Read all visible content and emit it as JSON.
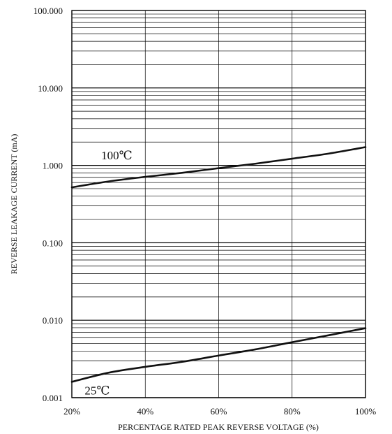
{
  "chart_data": {
    "type": "line",
    "xlabel": "PERCENTAGE RATED PEAK REVERSE VOLTAGE (%)",
    "ylabel": "REVERSE LEAKAGE CURRENT (mA)",
    "y_scale": "log",
    "xlim": [
      20,
      100
    ],
    "ylim": [
      0.001,
      100
    ],
    "grid": true,
    "x_ticks": [
      {
        "value": 20,
        "label": "20%"
      },
      {
        "value": 40,
        "label": "40%"
      },
      {
        "value": 60,
        "label": "60%"
      },
      {
        "value": 80,
        "label": "80%"
      },
      {
        "value": 100,
        "label": "100%"
      }
    ],
    "y_ticks": [
      {
        "value": 0.001,
        "label": "0.001"
      },
      {
        "value": 0.01,
        "label": "0.010"
      },
      {
        "value": 0.1,
        "label": "0.100"
      },
      {
        "value": 1,
        "label": "1.000"
      },
      {
        "value": 10,
        "label": "10.000"
      },
      {
        "value": 100,
        "label": "100.000"
      }
    ],
    "series": [
      {
        "name": "100℃",
        "label_at": [
          28,
          1.2
        ],
        "x": [
          20,
          30,
          40,
          50,
          60,
          70,
          80,
          90,
          100
        ],
        "y": [
          0.52,
          0.62,
          0.71,
          0.8,
          0.92,
          1.05,
          1.22,
          1.42,
          1.72
        ]
      },
      {
        "name": "25℃",
        "label_at": [
          23.5,
          0.0011
        ],
        "x": [
          20,
          30,
          40,
          50,
          60,
          70,
          80,
          90,
          100
        ],
        "y": [
          0.0016,
          0.0021,
          0.0025,
          0.0029,
          0.0035,
          0.0042,
          0.0052,
          0.0064,
          0.0079
        ]
      }
    ]
  }
}
